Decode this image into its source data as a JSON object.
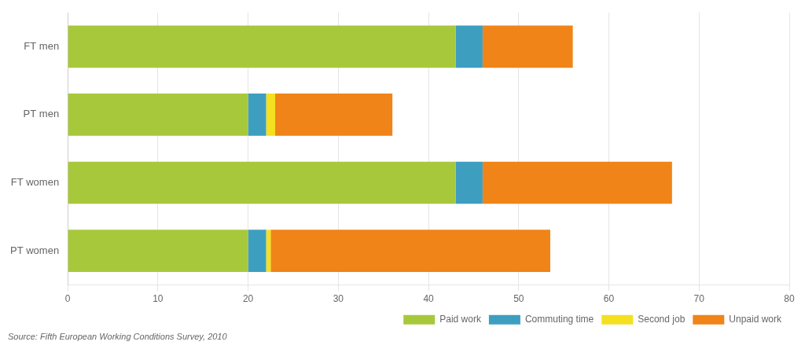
{
  "chart_data": {
    "type": "bar",
    "orientation": "horizontal",
    "stacked": true,
    "categories": [
      "PT women",
      "FT women",
      "PT men",
      "FT men"
    ],
    "series": [
      {
        "name": "Paid work",
        "color": "#a8c83c",
        "values": [
          20,
          43,
          20,
          43
        ]
      },
      {
        "name": "Commuting time",
        "color": "#3d9ec0",
        "values": [
          2,
          3,
          2,
          3
        ]
      },
      {
        "name": "Second job",
        "color": "#f5e020",
        "values": [
          0.5,
          0,
          1,
          0
        ]
      },
      {
        "name": "Unpaid work",
        "color": "#f08418",
        "values": [
          31,
          21,
          13,
          10
        ]
      }
    ],
    "xlim": [
      0,
      80
    ],
    "xticks": [
      0,
      10,
      20,
      30,
      40,
      50,
      60,
      70,
      80
    ],
    "grid": true,
    "legend": "lower right",
    "annotations": [
      "Source: Fifth European Working Conditions Survey, 2010"
    ]
  }
}
